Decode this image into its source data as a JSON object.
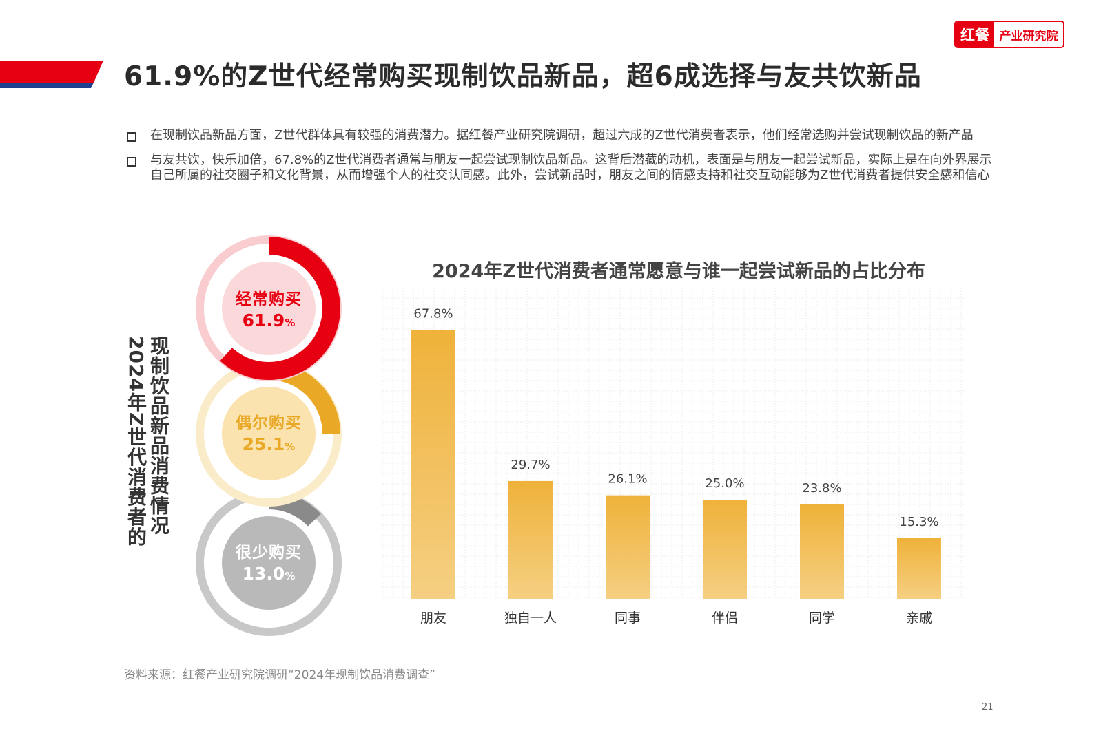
{
  "colors": {
    "accent_red": "#e60012",
    "navy": "#1f3f8f",
    "bar_gold": "#f0b33c",
    "occasional_gold": "#e9a825",
    "gray": "#a0a0a0"
  },
  "logo": {
    "mark": "红餐",
    "text": "产业研究院"
  },
  "title": "61.9%的Z世代经常购买现制饮品新品，超6成选择与友共饮新品",
  "bullets": [
    "在现制饮品新品方面，Z世代群体具有较强的消费潜力。据红餐产业研究院调研，超过六成的Z世代消费者表示，他们经常选购并尝试现制饮品的新产品",
    "与友共饮，快乐加倍，67.8%的Z世代消费者通常与朋友一起尝试现制饮品新品。这背后潜藏的动机，表面是与朋友一起尝试新品，实际上是在向外界展示自己所属的社交圈子和文化背景，从而增强个人的社交认同感。此外，尝试新品时，朋友之间的情感支持和社交互动能够为Z世代消费者提供安全感和信心"
  ],
  "vertical_label": {
    "line1": "2024年Z世代消费者的",
    "line2": "现制饮品新品消费情况"
  },
  "donuts": [
    {
      "name": "经常购买",
      "value": 61.9,
      "value_text": "61.9",
      "unit": "%",
      "color": "#e60012",
      "track": "#f9cdd0",
      "inner": "#fbd9db",
      "text_color": "#e60012"
    },
    {
      "name": "偶尔购买",
      "value": 25.1,
      "value_text": "25.1",
      "unit": "%",
      "color": "#e9a825",
      "track": "#fbecc9",
      "inner": "#fbe3b0",
      "text_color": "#e9a825"
    },
    {
      "name": "很少购买",
      "value": 13.0,
      "value_text": "13.0",
      "unit": "%",
      "color": "#8a8a8a",
      "track": "#c8c8c8",
      "inner": "#b9b9b9",
      "text_color": "#ffffff"
    }
  ],
  "chart_data": {
    "type": "bar",
    "title": "2024年Z世代消费者通常愿意与谁一起尝试新品的占比分布",
    "categories": [
      "朋友",
      "独自一人",
      "同事",
      "伴侣",
      "同学",
      "亲戚"
    ],
    "values": [
      67.8,
      29.7,
      26.1,
      25.0,
      23.8,
      15.3
    ],
    "value_labels": [
      "67.8%",
      "29.7%",
      "26.1%",
      "25.0%",
      "23.8%",
      "15.3%"
    ],
    "unit": "%",
    "ylim": [
      0,
      75
    ],
    "grid": true
  },
  "source": "资料来源：红餐产业研究院调研“2024年现制饮品消费调查”",
  "page_number": "21"
}
